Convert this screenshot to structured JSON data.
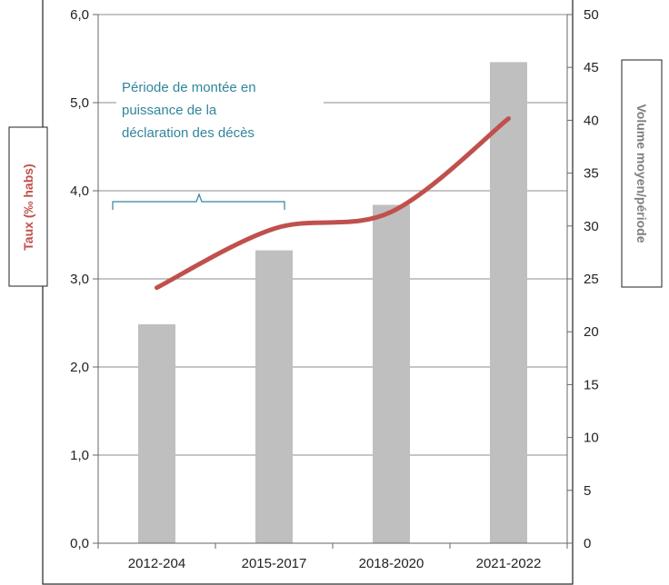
{
  "chart_data": {
    "type": "bar",
    "title": "",
    "categories": [
      "2012-204",
      "2015-2017",
      "2018-2020",
      "2021-2022"
    ],
    "bars": {
      "axis": "right",
      "values": [
        20.7,
        27.7,
        32.0,
        45.5
      ],
      "color": "#bfbfbf"
    },
    "line": {
      "axis": "left",
      "values": [
        2.9,
        3.57,
        3.76,
        4.82
      ],
      "color": "#c0504d"
    },
    "left_axis": {
      "label": "Taux (‰ habs)",
      "ylim": [
        0,
        6
      ],
      "ticks": [
        "0,0",
        "1,0",
        "2,0",
        "3,0",
        "4,0",
        "5,0",
        "6,0"
      ],
      "label_color": "#c0504d"
    },
    "right_axis": {
      "label": "Volume moyen/période",
      "ylim": [
        0,
        50
      ],
      "ticks": [
        "0",
        "5",
        "10",
        "15",
        "20",
        "25",
        "30",
        "35",
        "40",
        "45",
        "50"
      ],
      "label_color": "#7f7f7f"
    },
    "annotation": {
      "lines": [
        "Période de montée en",
        "puissance de la",
        "déclaration des décès"
      ],
      "color": "#31859c",
      "spans_categories": [
        0,
        1
      ]
    },
    "grid": true,
    "legend": "none"
  }
}
